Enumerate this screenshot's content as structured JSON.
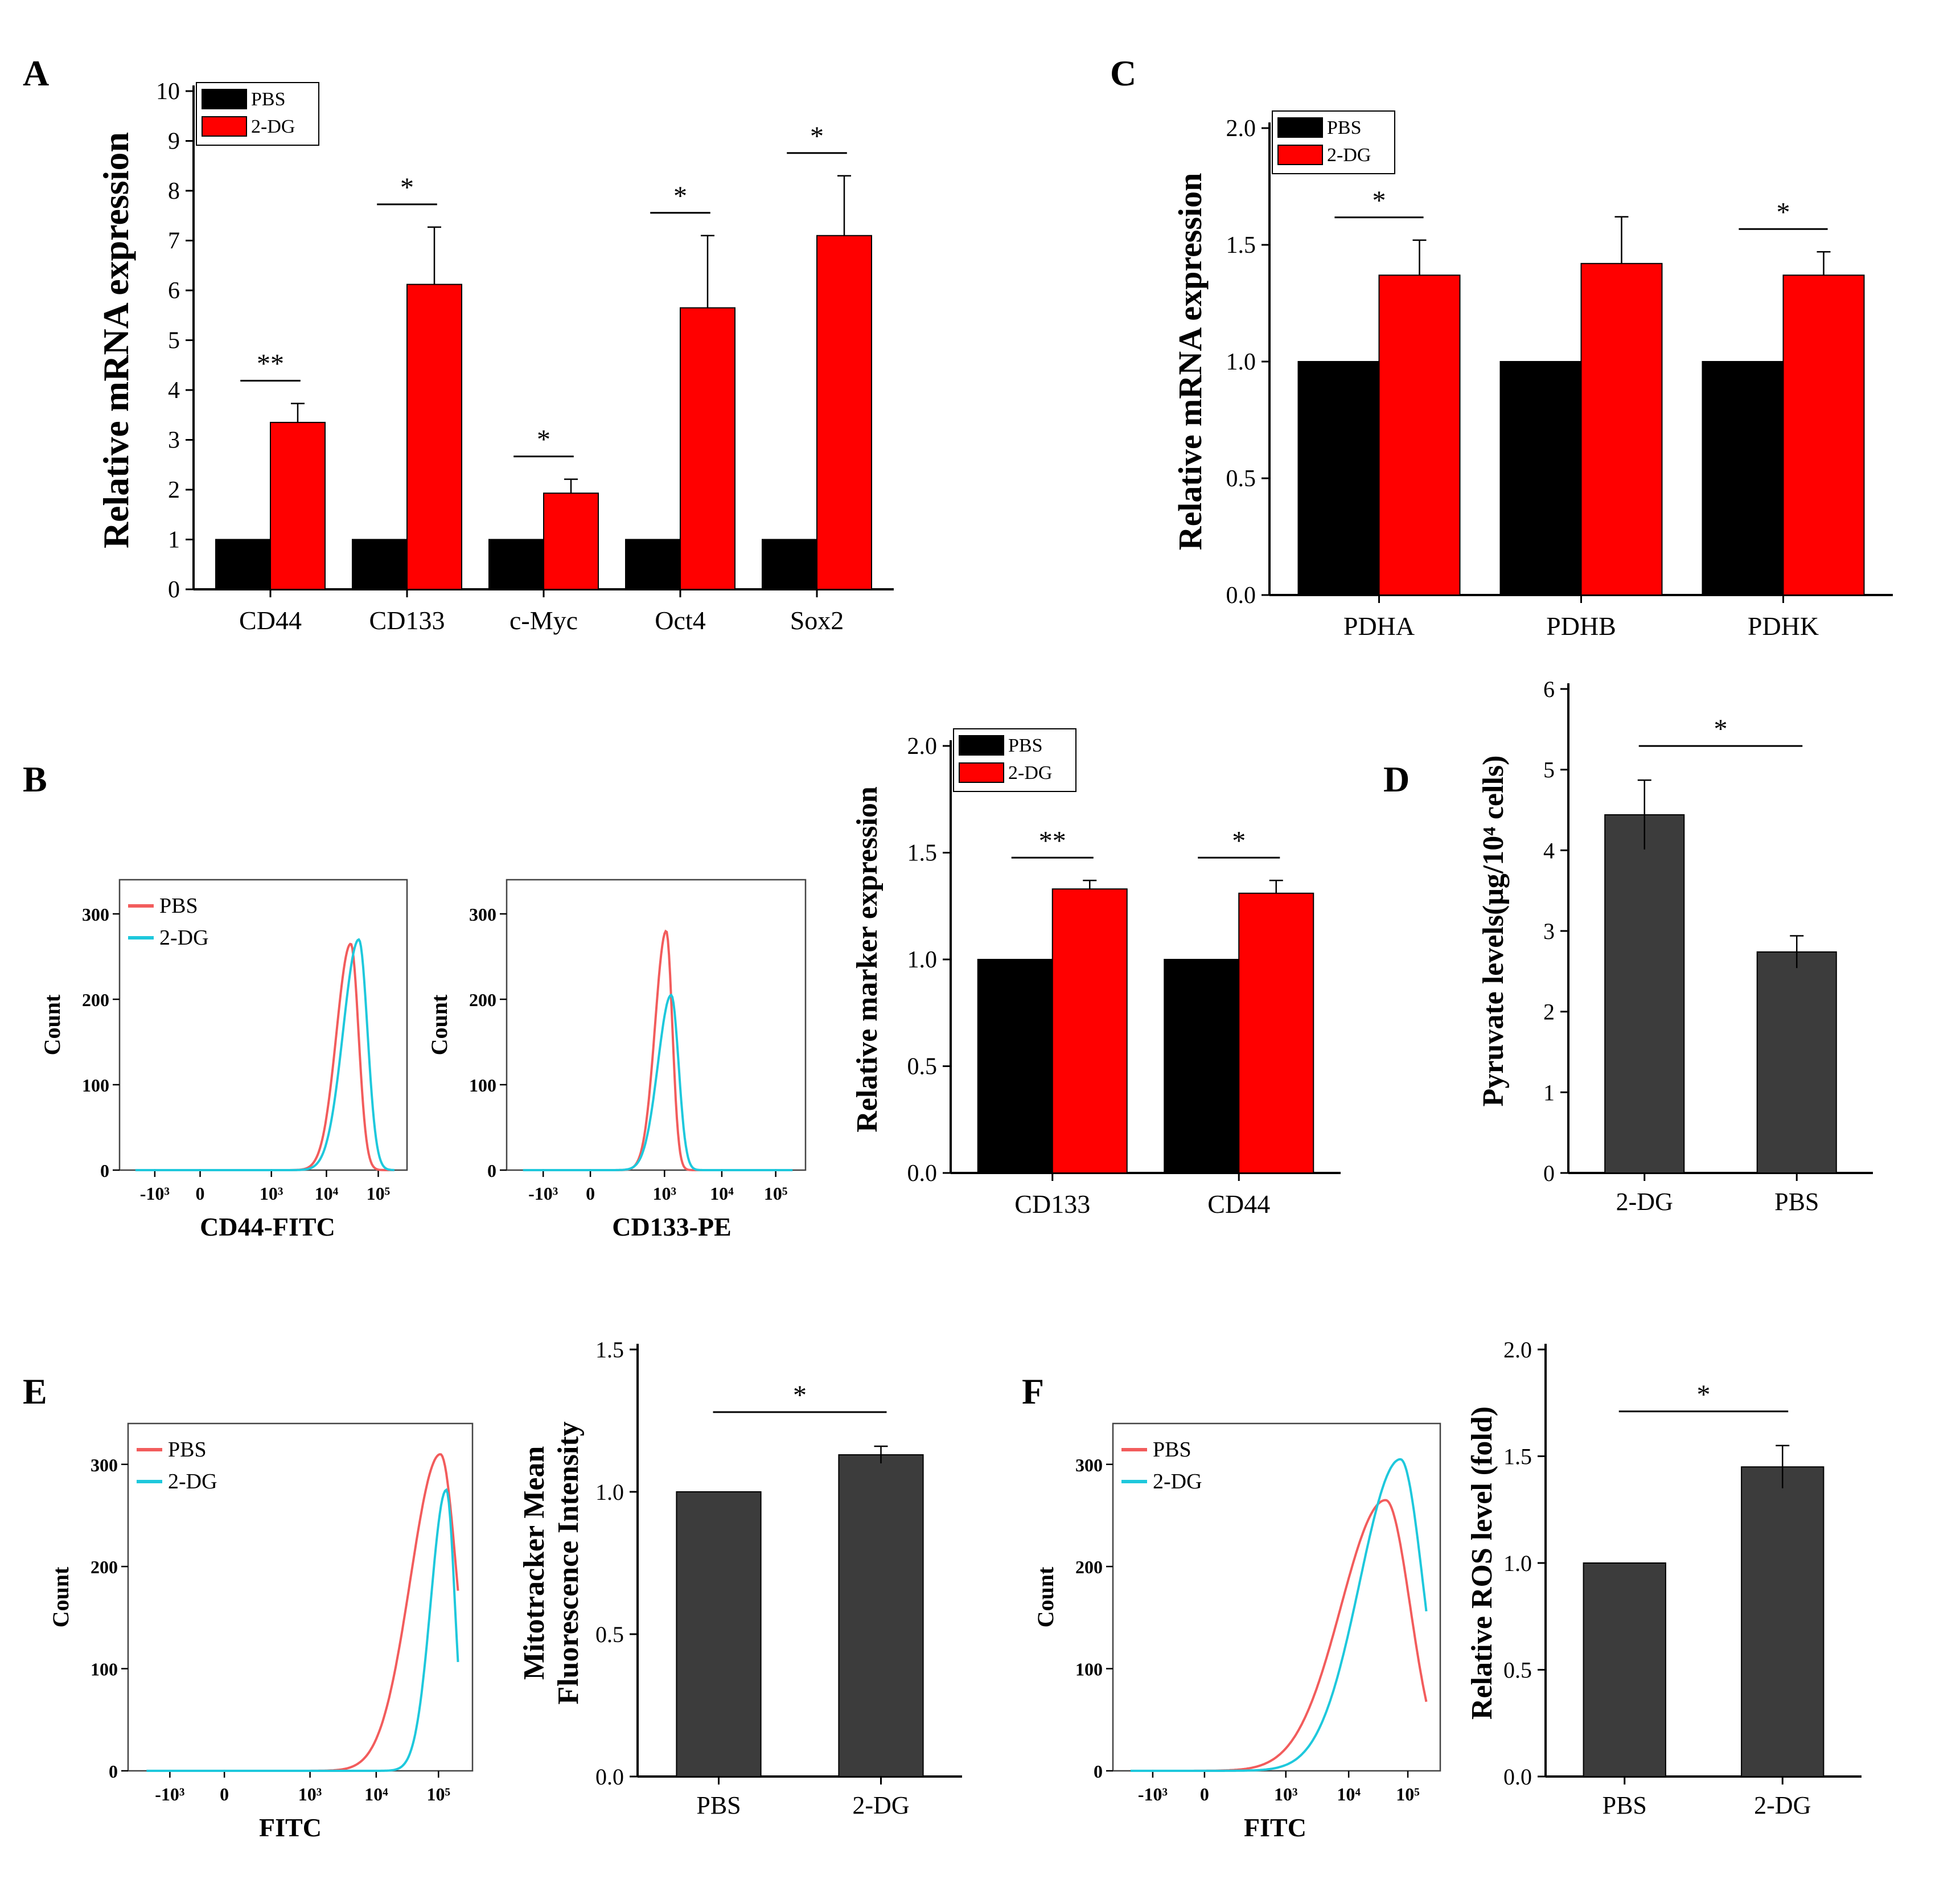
{
  "colors": {
    "pbs_bar": "#000000",
    "dg_bar": "#ff0000",
    "gray_bar": "#3c3c3c",
    "hist_pbs": "#f25c5c",
    "hist_dg": "#1ec8dc"
  },
  "panels": {
    "A": {
      "letter": "A"
    },
    "B": {
      "letter": "B"
    },
    "C": {
      "letter": "C"
    },
    "D": {
      "letter": "D"
    },
    "E": {
      "letter": "E"
    },
    "F": {
      "letter": "F"
    }
  },
  "chart_data": [
    {
      "id": "A",
      "type": "bar",
      "ylabel": "Relative mRNA expression",
      "xlabel": "",
      "ylim": [
        0,
        10
      ],
      "yticks": [
        0,
        1,
        2,
        3,
        4,
        5,
        6,
        7,
        8,
        9,
        10
      ],
      "legend": {
        "position": "top-left",
        "entries": [
          "PBS",
          "2-DG"
        ]
      },
      "categories": [
        "CD44",
        "CD133",
        "c-Myc",
        "Oct4",
        "Sox2"
      ],
      "series": [
        {
          "name": "PBS",
          "values": [
            1,
            1,
            1,
            1,
            1
          ]
        },
        {
          "name": "2-DG",
          "values": [
            3.35,
            6.12,
            1.93,
            5.65,
            7.1
          ],
          "errors": [
            0.38,
            1.15,
            0.28,
            1.45,
            1.2
          ]
        }
      ],
      "annotations": [
        "**",
        "*",
        "*",
        "*",
        "*"
      ]
    },
    {
      "id": "C",
      "type": "bar",
      "ylabel": "Relative mRNA expression",
      "xlabel": "",
      "ylim": [
        0,
        2.0
      ],
      "yticks": [
        "0.0",
        "0.5",
        "1.0",
        "1.5",
        "2.0"
      ],
      "legend": {
        "position": "top-left",
        "entries": [
          "PBS",
          "2-DG"
        ]
      },
      "categories": [
        "PDHA",
        "PDHB",
        "PDHK"
      ],
      "series": [
        {
          "name": "PBS",
          "values": [
            1,
            1,
            1
          ]
        },
        {
          "name": "2-DG",
          "values": [
            1.37,
            1.42,
            1.37
          ],
          "errors": [
            0.15,
            0.2,
            0.1
          ]
        }
      ],
      "annotations": [
        "*",
        "",
        "*"
      ]
    },
    {
      "id": "B-bar",
      "type": "bar",
      "ylabel": "Relative marker expression",
      "xlabel": "",
      "ylim": [
        0,
        2.0
      ],
      "yticks": [
        "0.0",
        "0.5",
        "1.0",
        "1.5",
        "2.0"
      ],
      "legend": {
        "position": "top-left",
        "entries": [
          "PBS",
          "2-DG"
        ]
      },
      "categories": [
        "CD133",
        "CD44"
      ],
      "series": [
        {
          "name": "PBS",
          "values": [
            1,
            1
          ]
        },
        {
          "name": "2-DG",
          "values": [
            1.33,
            1.31
          ],
          "errors": [
            0.04,
            0.06
          ]
        }
      ],
      "annotations": [
        "**",
        "*"
      ]
    },
    {
      "id": "D",
      "type": "bar",
      "ylabel": "Pyruvate levels(μg/10⁴ cells)",
      "xlabel": "",
      "ylim": [
        0,
        6
      ],
      "yticks": [
        0,
        1,
        2,
        3,
        4,
        5,
        6
      ],
      "categories": [
        "2-DG",
        "PBS"
      ],
      "values": [
        4.44,
        2.74
      ],
      "errors": [
        0.43,
        0.2
      ],
      "annotations": [
        "*"
      ]
    },
    {
      "id": "E-bar",
      "type": "bar",
      "ylabel_lines": [
        "Mitotracker Mean",
        "Fluorescence Intensity"
      ],
      "xlabel": "",
      "ylim": [
        0,
        1.5
      ],
      "yticks": [
        "0.0",
        "0.5",
        "1.0",
        "1.5"
      ],
      "categories": [
        "PBS",
        "2-DG"
      ],
      "values": [
        1.0,
        1.13
      ],
      "errors": [
        0,
        0.03
      ],
      "annotations": [
        "*"
      ]
    },
    {
      "id": "F-bar",
      "type": "bar",
      "ylabel": "Relative ROS level (fold)",
      "xlabel": "",
      "ylim": [
        0,
        2.0
      ],
      "yticks": [
        "0.0",
        "0.5",
        "1.0",
        "1.5",
        "2.0"
      ],
      "categories": [
        "PBS",
        "2-DG"
      ],
      "values": [
        1.0,
        1.45
      ],
      "errors": [
        0,
        0.1
      ],
      "annotations": [
        "*"
      ]
    },
    {
      "id": "B-hist1",
      "type": "line",
      "xlabel": "CD44-FITC",
      "ylabel": "Count",
      "ylim": [
        0,
        300
      ],
      "yticks": [
        "0",
        "100",
        "200",
        "300"
      ],
      "xticks": [
        "-10³",
        "0",
        "10³",
        "10⁴",
        "10⁵"
      ],
      "legend": {
        "position": "top-left",
        "entries": [
          "PBS",
          "2-DG"
        ]
      },
      "series": [
        {
          "name": "PBS",
          "peak_log_x": 4.15,
          "peak_count": 265,
          "width": 0.2
        },
        {
          "name": "2-DG",
          "peak_log_x": 4.4,
          "peak_count": 270,
          "width": 0.22
        }
      ]
    },
    {
      "id": "B-hist2",
      "type": "line",
      "xlabel": "CD133-PE",
      "ylabel": "Count",
      "ylim": [
        0,
        300
      ],
      "yticks": [
        "0",
        "100",
        "200",
        "300"
      ],
      "xticks": [
        "-10³",
        "0",
        "10³",
        "10⁴",
        "10⁵"
      ],
      "series": [
        {
          "name": "PBS",
          "peak_log_x": 2.4,
          "peak_count": 280,
          "width": 0.15
        },
        {
          "name": "2-DG",
          "peak_log_x": 2.55,
          "peak_count": 205,
          "width": 0.18
        }
      ]
    },
    {
      "id": "E-hist",
      "type": "line",
      "xlabel": "FITC",
      "ylabel": "Count",
      "ylim": [
        0,
        300
      ],
      "yticks": [
        "0",
        "100",
        "200",
        "300"
      ],
      "xticks": [
        "-10³",
        "0",
        "10³",
        "10⁴",
        "10⁵"
      ],
      "legend": {
        "position": "top-left",
        "entries": [
          "PBS",
          "2-DG"
        ]
      },
      "series": [
        {
          "name": "PBS",
          "peak_log_x": 5.05,
          "peak_count": 310,
          "width": 0.35
        },
        {
          "name": "2-DG",
          "peak_log_x": 5.2,
          "peak_count": 275,
          "width": 0.18
        }
      ]
    },
    {
      "id": "F-hist",
      "type": "line",
      "xlabel": "FITC",
      "ylabel": "Count",
      "ylim": [
        0,
        300
      ],
      "yticks": [
        "0",
        "100",
        "200",
        "300"
      ],
      "xticks": [
        "-10³",
        "0",
        "10³",
        "10⁴",
        "10⁵"
      ],
      "legend": {
        "position": "top-left",
        "entries": [
          "PBS",
          "2-DG"
        ]
      },
      "series": [
        {
          "name": "PBS",
          "peak_log_x": 4.4,
          "peak_count": 265,
          "width": 0.55
        },
        {
          "name": "2-DG",
          "peak_log_x": 4.8,
          "peak_count": 305,
          "width": 0.5
        }
      ]
    }
  ]
}
